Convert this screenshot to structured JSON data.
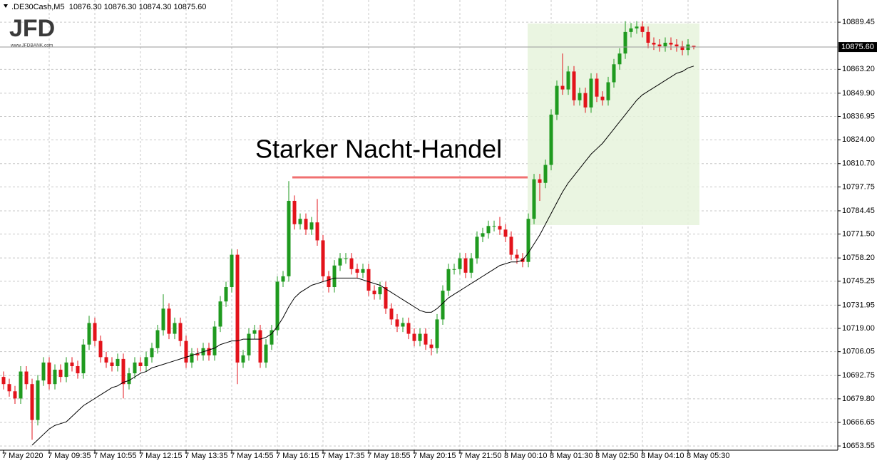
{
  "chart_data": {
    "type": "candlestick",
    "header": ".DE30Cash,M5  10876.30 10876.30 10874.30 10875.60",
    "logo": "JFD",
    "logo_url": "www.JFDBANK.com",
    "annotation": "Starker Nacht-Handel",
    "up_color": "#1f9a1f",
    "down_color": "#e3131b",
    "ma_color": "#000000",
    "grid": true,
    "categories": [
      "7 May 2020",
      null,
      null,
      null,
      null,
      null,
      null,
      null,
      "7 May 09:35",
      null,
      null,
      null,
      null,
      null,
      null,
      null,
      "7 May 10:55",
      null,
      null,
      null,
      null,
      null,
      null,
      null,
      "7 May 12:15",
      null,
      null,
      null,
      null,
      null,
      null,
      null,
      "7 May 13:35",
      null,
      null,
      null,
      null,
      null,
      null,
      null,
      "7 May 14:55",
      null,
      null,
      null,
      null,
      null,
      null,
      null,
      "7 May 16:15",
      null,
      null,
      null,
      null,
      null,
      null,
      null,
      "7 May 17:35",
      null,
      null,
      null,
      null,
      null,
      null,
      null,
      "7 May 18:55",
      null,
      null,
      null,
      null,
      null,
      null,
      null,
      "7 May 20:15",
      null,
      null,
      null,
      null,
      null,
      null,
      null,
      "7 May 21:50",
      null,
      null,
      null,
      null,
      null,
      null,
      null,
      "8 May 00:10",
      null,
      null,
      null,
      null,
      null,
      null,
      null,
      "8 May 01:30",
      null,
      null,
      null,
      null,
      null,
      null,
      null,
      "8 May 02:50",
      null,
      null,
      null,
      null,
      null,
      null,
      null,
      "8 May 04:10",
      null,
      null,
      null,
      null,
      null,
      null,
      null,
      "8 May 05:30",
      null
    ],
    "open": [
      10692,
      10688,
      10684,
      10680,
      10695,
      10688,
      10668,
      10690,
      10700,
      10688,
      10696,
      10692,
      10700,
      10698,
      10694,
      10710,
      10722,
      10712,
      10703,
      10700,
      10698,
      10702,
      10688,
      10694,
      10700,
      10698,
      10703,
      10708,
      10718,
      10730,
      10716,
      10722,
      10712,
      10700,
      10705,
      10704,
      10708,
      10704,
      10720,
      10734,
      10742,
      10760,
      10700,
      10704,
      10716,
      10718,
      10700,
      10710,
      10718,
      10745,
      10748,
      10790,
      10777,
      10780,
      10774,
      10778,
      10768,
      10748,
      10742,
      10754,
      10758,
      10758,
      10752,
      10750,
      10752,
      10740,
      10738,
      10742,
      10730,
      10724,
      10720,
      10722,
      10716,
      10712,
      10716,
      10710,
      10708,
      10724,
      10740,
      10752,
      10752,
      10758,
      10750,
      10758,
      10770,
      10772,
      10776,
      10776,
      10774,
      10770,
      10760,
      10758,
      10756,
      10780,
      10802,
      10800,
      10810,
      10838,
      10854,
      10852,
      10862,
      10846,
      10850,
      10842,
      10858,
      10848,
      10846,
      10856,
      10866,
      10872,
      10884,
      10886,
      10887,
      10884,
      10878,
      10877,
      10876,
      10878,
      10877,
      10876,
      10874,
      10876.3
    ],
    "high": [
      10695,
      10691,
      10687,
      10698,
      10698,
      10691,
      10693,
      10703,
      10703,
      10699,
      10699,
      10703,
      10703,
      10701,
      10713,
      10726,
      10725,
      10715,
      10706,
      10703,
      10705,
      10705,
      10697,
      10703,
      10703,
      10706,
      10711,
      10721,
      10738,
      10733,
      10725,
      10725,
      10715,
      10708,
      10708,
      10711,
      10711,
      10723,
      10737,
      10745,
      10763,
      10763,
      10707,
      10719,
      10721,
      10721,
      10713,
      10721,
      10748,
      10751,
      10801,
      10793,
      10783,
      10783,
      10781,
      10791,
      10771,
      10751,
      10757,
      10761,
      10761,
      10761,
      10755,
      10755,
      10755,
      10743,
      10745,
      10745,
      10733,
      10727,
      10725,
      10725,
      10719,
      10719,
      10719,
      10713,
      10727,
      10743,
      10755,
      10755,
      10761,
      10761,
      10761,
      10773,
      10775,
      10779,
      10779,
      10781,
      10777,
      10773,
      10763,
      10761,
      10783,
      10805,
      10805,
      10813,
      10841,
      10857,
      10872,
      10865,
      10865,
      10853,
      10853,
      10861,
      10861,
      10851,
      10859,
      10869,
      10875,
      10890,
      10889,
      10890,
      10890,
      10887,
      10881,
      10880,
      10881,
      10881,
      10880,
      10879,
      10880,
      10876.3
    ],
    "low": [
      10685,
      10681,
      10677,
      10677,
      10685,
      10657,
      10665,
      10687,
      10685,
      10685,
      10689,
      10689,
      10695,
      10691,
      10691,
      10707,
      10709,
      10700,
      10697,
      10695,
      10695,
      10680,
      10685,
      10691,
      10695,
      10695,
      10700,
      10705,
      10715,
      10713,
      10713,
      10709,
      10697,
      10697,
      10701,
      10701,
      10701,
      10701,
      10717,
      10731,
      10739,
      10688,
      10697,
      10701,
      10713,
      10697,
      10697,
      10707,
      10715,
      10742,
      10745,
      10774,
      10774,
      10771,
      10771,
      10765,
      10745,
      10739,
      10739,
      10751,
      10755,
      10749,
      10747,
      10747,
      10737,
      10735,
      10735,
      10727,
      10721,
      10717,
      10717,
      10713,
      10709,
      10709,
      10707,
      10704,
      10705,
      10721,
      10737,
      10749,
      10749,
      10747,
      10747,
      10755,
      10767,
      10769,
      10773,
      10771,
      10767,
      10757,
      10755,
      10753,
      10753,
      10777,
      10790,
      10797,
      10807,
      10835,
      10849,
      10849,
      10843,
      10843,
      10839,
      10839,
      10845,
      10843,
      10843,
      10853,
      10863,
      10869,
      10881,
      10883,
      10881,
      10875,
      10874,
      10873,
      10873,
      10874,
      10873,
      10871,
      10871,
      10874.3
    ],
    "close": [
      10688,
      10684,
      10680,
      10695,
      10688,
      10668,
      10690,
      10700,
      10688,
      10696,
      10692,
      10700,
      10698,
      10694,
      10710,
      10722,
      10712,
      10703,
      10700,
      10698,
      10702,
      10688,
      10694,
      10700,
      10698,
      10703,
      10708,
      10718,
      10730,
      10716,
      10722,
      10712,
      10700,
      10705,
      10704,
      10708,
      10704,
      10720,
      10734,
      10742,
      10760,
      10700,
      10704,
      10716,
      10718,
      10700,
      10710,
      10718,
      10745,
      10748,
      10790,
      10777,
      10780,
      10774,
      10778,
      10768,
      10748,
      10742,
      10754,
      10758,
      10758,
      10752,
      10750,
      10752,
      10740,
      10738,
      10742,
      10730,
      10724,
      10720,
      10722,
      10716,
      10712,
      10716,
      10710,
      10708,
      10724,
      10740,
      10752,
      10752,
      10758,
      10750,
      10758,
      10770,
      10772,
      10776,
      10776,
      10774,
      10770,
      10760,
      10758,
      10756,
      10780,
      10802,
      10800,
      10810,
      10838,
      10854,
      10852,
      10862,
      10846,
      10850,
      10842,
      10858,
      10848,
      10846,
      10856,
      10866,
      10872,
      10884,
      10886,
      10887,
      10884,
      10878,
      10877,
      10876,
      10878,
      10877,
      10876,
      10874,
      10877,
      10875.6
    ],
    "ma": [
      null,
      null,
      null,
      null,
      null,
      10654,
      10657,
      10660,
      10663,
      10665,
      10666,
      10667,
      10670,
      10673,
      10676,
      10678,
      10680,
      10682,
      10684,
      10686,
      10687,
      10689,
      10690,
      10692,
      10694,
      10695,
      10697,
      10698,
      10699,
      10700,
      10701,
      10702,
      10703,
      10704,
      10705,
      10706,
      10707,
      10708,
      10710,
      10711,
      10712,
      10712,
      10713,
      10713,
      10713,
      10713,
      10714,
      10716,
      10720,
      10725,
      10731,
      10736,
      10739,
      10741,
      10743,
      10744,
      10745,
      10746,
      10747,
      10747,
      10747,
      10747,
      10747,
      10746,
      10745,
      10744,
      10743,
      10741,
      10739,
      10737,
      10735,
      10733,
      10731,
      10729,
      10728,
      10728,
      10730,
      10733,
      10736,
      10738,
      10740,
      10742,
      10744,
      10746,
      10748,
      10750,
      10752,
      10754,
      10755,
      10756,
      10756,
      10757,
      10761,
      10766,
      10771,
      10777,
      10783,
      10789,
      10795,
      10800,
      10804,
      10808,
      10812,
      10816,
      10819,
      10822,
      10826,
      10830,
      10834,
      10838,
      10842,
      10846,
      10849,
      10851,
      10853,
      10855,
      10857,
      10859,
      10861,
      10862,
      10864,
      10865
    ],
    "current_price": {
      "value": 10875.6,
      "label": "10875.60"
    },
    "ylim": [
      10652,
      10901
    ],
    "yticks": [
      {
        "value": 10653.55,
        "label": "10653.55"
      },
      {
        "value": 10666.65,
        "label": "10666.65"
      },
      {
        "value": 10679.8,
        "label": "10679.80"
      },
      {
        "value": 10692.75,
        "label": "10692.75"
      },
      {
        "value": 10706.05,
        "label": "10706.05"
      },
      {
        "value": 10719,
        "label": "10719.00"
      },
      {
        "value": 10731.95,
        "label": "10731.95"
      },
      {
        "value": 10745.25,
        "label": "10745.25"
      },
      {
        "value": 10758.2,
        "label": "10758.20"
      },
      {
        "value": 10771.5,
        "label": "10771.50"
      },
      {
        "value": 10784.45,
        "label": "10784.45"
      },
      {
        "value": 10797.75,
        "label": "10797.75"
      },
      {
        "value": 10810.7,
        "label": "10810.70"
      },
      {
        "value": 10824,
        "label": "10824.00"
      },
      {
        "value": 10836.95,
        "label": "10836.95"
      },
      {
        "value": 10849.9,
        "label": "10849.90"
      },
      {
        "value": 10863.2,
        "label": "10863.20"
      },
      {
        "value": 10889.45,
        "label": "10889.45"
      }
    ]
  }
}
